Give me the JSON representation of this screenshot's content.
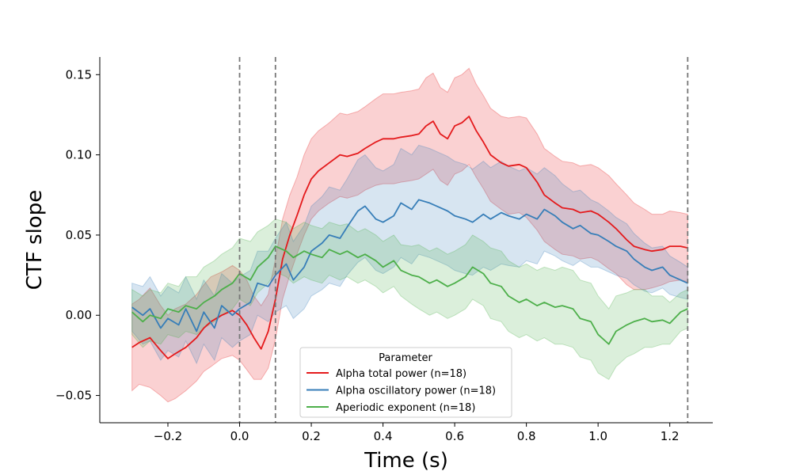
{
  "chart_data": {
    "type": "line",
    "xlabel": "Time (s)",
    "ylabel": "CTF slope",
    "xlim": [
      -0.39,
      1.32
    ],
    "ylim": [
      -0.067,
      0.161
    ],
    "xticks": [
      -0.2,
      0.0,
      0.2,
      0.4,
      0.6,
      0.8,
      1.0,
      1.2
    ],
    "xtick_labels": [
      "−0.2",
      "0.0",
      "0.2",
      "0.4",
      "0.6",
      "0.8",
      "1.0",
      "1.2"
    ],
    "yticks": [
      -0.05,
      0.0,
      0.05,
      0.1,
      0.15
    ],
    "ytick_labels": [
      "−0.05",
      "0.00",
      "0.05",
      "0.10",
      "0.15"
    ],
    "vlines": [
      0.0,
      0.1,
      1.25
    ],
    "legend": {
      "title": "Parameter",
      "location": "lower center"
    },
    "series": [
      {
        "name": "Alpha total power (n=18)",
        "color": "#e41a1c",
        "x": [
          -0.3,
          -0.28,
          -0.25,
          -0.22,
          -0.2,
          -0.18,
          -0.15,
          -0.12,
          -0.1,
          -0.08,
          -0.05,
          -0.02,
          0.0,
          0.02,
          0.04,
          0.06,
          0.08,
          0.1,
          0.12,
          0.14,
          0.16,
          0.18,
          0.2,
          0.22,
          0.25,
          0.28,
          0.3,
          0.33,
          0.35,
          0.38,
          0.4,
          0.43,
          0.45,
          0.48,
          0.5,
          0.52,
          0.54,
          0.56,
          0.58,
          0.6,
          0.62,
          0.64,
          0.66,
          0.68,
          0.7,
          0.73,
          0.75,
          0.78,
          0.8,
          0.83,
          0.85,
          0.88,
          0.9,
          0.93,
          0.95,
          0.98,
          1.0,
          1.03,
          1.05,
          1.08,
          1.1,
          1.13,
          1.15,
          1.18,
          1.2,
          1.23,
          1.25
        ],
        "y": [
          -0.02,
          -0.017,
          -0.014,
          -0.022,
          -0.027,
          -0.024,
          -0.02,
          -0.014,
          -0.008,
          -0.004,
          0.0,
          0.003,
          0.0,
          -0.006,
          -0.014,
          -0.021,
          -0.01,
          0.01,
          0.035,
          0.05,
          0.062,
          0.075,
          0.085,
          0.09,
          0.095,
          0.1,
          0.099,
          0.101,
          0.104,
          0.108,
          0.11,
          0.11,
          0.111,
          0.112,
          0.113,
          0.118,
          0.121,
          0.113,
          0.11,
          0.118,
          0.12,
          0.124,
          0.115,
          0.108,
          0.1,
          0.095,
          0.093,
          0.094,
          0.092,
          0.083,
          0.075,
          0.07,
          0.067,
          0.066,
          0.064,
          0.065,
          0.063,
          0.058,
          0.054,
          0.047,
          0.043,
          0.041,
          0.04,
          0.041,
          0.043,
          0.043,
          0.042
        ],
        "lower": [
          -0.047,
          -0.043,
          -0.045,
          -0.05,
          -0.054,
          -0.052,
          -0.047,
          -0.041,
          -0.035,
          -0.032,
          -0.027,
          -0.025,
          -0.028,
          -0.034,
          -0.04,
          -0.04,
          -0.033,
          -0.015,
          0.01,
          0.025,
          0.038,
          0.05,
          0.06,
          0.065,
          0.07,
          0.074,
          0.073,
          0.075,
          0.078,
          0.081,
          0.082,
          0.082,
          0.083,
          0.084,
          0.085,
          0.088,
          0.091,
          0.084,
          0.081,
          0.088,
          0.09,
          0.094,
          0.086,
          0.079,
          0.071,
          0.066,
          0.063,
          0.064,
          0.061,
          0.053,
          0.046,
          0.041,
          0.038,
          0.037,
          0.035,
          0.036,
          0.034,
          0.029,
          0.026,
          0.019,
          0.016,
          0.016,
          0.017,
          0.019,
          0.021,
          0.022,
          0.021
        ],
        "upper": [
          0.007,
          0.01,
          0.017,
          0.006,
          0.0,
          0.004,
          0.007,
          0.013,
          0.019,
          0.024,
          0.027,
          0.031,
          0.028,
          0.022,
          0.012,
          0.006,
          0.013,
          0.035,
          0.06,
          0.075,
          0.086,
          0.1,
          0.11,
          0.115,
          0.12,
          0.126,
          0.125,
          0.127,
          0.13,
          0.135,
          0.138,
          0.138,
          0.139,
          0.14,
          0.141,
          0.148,
          0.151,
          0.142,
          0.139,
          0.148,
          0.15,
          0.154,
          0.144,
          0.137,
          0.129,
          0.124,
          0.123,
          0.124,
          0.123,
          0.113,
          0.104,
          0.099,
          0.096,
          0.095,
          0.093,
          0.094,
          0.092,
          0.087,
          0.082,
          0.075,
          0.07,
          0.066,
          0.063,
          0.063,
          0.065,
          0.064,
          0.063
        ]
      },
      {
        "name": "Alpha oscillatory power (n=18)",
        "color": "#377eb8",
        "x": [
          -0.3,
          -0.27,
          -0.25,
          -0.22,
          -0.2,
          -0.17,
          -0.15,
          -0.12,
          -0.1,
          -0.07,
          -0.05,
          -0.02,
          0.0,
          0.03,
          0.05,
          0.08,
          0.1,
          0.13,
          0.15,
          0.18,
          0.2,
          0.23,
          0.25,
          0.28,
          0.3,
          0.33,
          0.35,
          0.38,
          0.4,
          0.43,
          0.45,
          0.48,
          0.5,
          0.53,
          0.55,
          0.58,
          0.6,
          0.63,
          0.65,
          0.68,
          0.7,
          0.73,
          0.75,
          0.78,
          0.8,
          0.83,
          0.85,
          0.88,
          0.9,
          0.93,
          0.95,
          0.98,
          1.0,
          1.03,
          1.05,
          1.08,
          1.1,
          1.13,
          1.15,
          1.18,
          1.2,
          1.23,
          1.25
        ],
        "y": [
          0.005,
          0.0,
          0.004,
          -0.008,
          -0.002,
          -0.006,
          0.004,
          -0.01,
          0.002,
          -0.008,
          0.006,
          0.0,
          0.004,
          0.008,
          0.02,
          0.018,
          0.025,
          0.032,
          0.022,
          0.03,
          0.04,
          0.045,
          0.05,
          0.048,
          0.055,
          0.065,
          0.068,
          0.06,
          0.058,
          0.062,
          0.07,
          0.066,
          0.072,
          0.07,
          0.068,
          0.065,
          0.062,
          0.06,
          0.058,
          0.063,
          0.06,
          0.064,
          0.062,
          0.06,
          0.063,
          0.06,
          0.066,
          0.062,
          0.058,
          0.054,
          0.056,
          0.051,
          0.05,
          0.046,
          0.043,
          0.04,
          0.035,
          0.03,
          0.028,
          0.03,
          0.025,
          0.022,
          0.02
        ],
        "lower": [
          -0.01,
          -0.018,
          -0.016,
          -0.028,
          -0.022,
          -0.026,
          -0.016,
          -0.03,
          -0.018,
          -0.028,
          -0.014,
          -0.02,
          -0.016,
          -0.012,
          0.0,
          -0.004,
          0.002,
          0.006,
          -0.002,
          0.004,
          0.012,
          0.016,
          0.02,
          0.018,
          0.025,
          0.033,
          0.036,
          0.028,
          0.026,
          0.03,
          0.036,
          0.032,
          0.038,
          0.036,
          0.034,
          0.031,
          0.028,
          0.026,
          0.025,
          0.03,
          0.028,
          0.032,
          0.031,
          0.03,
          0.034,
          0.032,
          0.04,
          0.037,
          0.034,
          0.031,
          0.034,
          0.03,
          0.03,
          0.027,
          0.025,
          0.023,
          0.019,
          0.015,
          0.014,
          0.017,
          0.013,
          0.011,
          0.01
        ],
        "upper": [
          0.02,
          0.018,
          0.024,
          0.012,
          0.018,
          0.014,
          0.024,
          0.01,
          0.022,
          0.012,
          0.026,
          0.02,
          0.024,
          0.028,
          0.04,
          0.04,
          0.048,
          0.058,
          0.046,
          0.056,
          0.068,
          0.074,
          0.08,
          0.078,
          0.085,
          0.097,
          0.1,
          0.092,
          0.09,
          0.094,
          0.104,
          0.1,
          0.106,
          0.104,
          0.102,
          0.099,
          0.096,
          0.094,
          0.091,
          0.096,
          0.092,
          0.096,
          0.093,
          0.09,
          0.092,
          0.088,
          0.092,
          0.087,
          0.082,
          0.077,
          0.078,
          0.072,
          0.07,
          0.065,
          0.061,
          0.057,
          0.051,
          0.045,
          0.042,
          0.043,
          0.037,
          0.033,
          0.03
        ]
      },
      {
        "name": "Aperiodic exponent (n=18)",
        "color": "#4daf4a",
        "x": [
          -0.3,
          -0.27,
          -0.25,
          -0.22,
          -0.2,
          -0.17,
          -0.15,
          -0.12,
          -0.1,
          -0.07,
          -0.05,
          -0.02,
          0.0,
          0.03,
          0.05,
          0.08,
          0.1,
          0.13,
          0.15,
          0.18,
          0.2,
          0.23,
          0.25,
          0.28,
          0.3,
          0.33,
          0.35,
          0.38,
          0.4,
          0.43,
          0.45,
          0.48,
          0.5,
          0.53,
          0.55,
          0.58,
          0.6,
          0.63,
          0.65,
          0.68,
          0.7,
          0.73,
          0.75,
          0.78,
          0.8,
          0.83,
          0.85,
          0.88,
          0.9,
          0.93,
          0.95,
          0.98,
          1.0,
          1.03,
          1.05,
          1.08,
          1.1,
          1.13,
          1.15,
          1.18,
          1.2,
          1.23,
          1.25
        ],
        "y": [
          0.002,
          -0.004,
          0.0,
          -0.002,
          0.004,
          0.002,
          0.006,
          0.004,
          0.008,
          0.012,
          0.016,
          0.02,
          0.026,
          0.022,
          0.03,
          0.036,
          0.043,
          0.04,
          0.036,
          0.04,
          0.038,
          0.036,
          0.041,
          0.038,
          0.04,
          0.036,
          0.038,
          0.034,
          0.03,
          0.034,
          0.028,
          0.025,
          0.024,
          0.02,
          0.022,
          0.018,
          0.02,
          0.024,
          0.03,
          0.026,
          0.02,
          0.018,
          0.012,
          0.008,
          0.01,
          0.006,
          0.008,
          0.005,
          0.006,
          0.004,
          -0.002,
          -0.004,
          -0.012,
          -0.018,
          -0.01,
          -0.006,
          -0.004,
          -0.002,
          -0.004,
          -0.003,
          -0.005,
          0.002,
          0.004
        ],
        "lower": [
          -0.012,
          -0.02,
          -0.016,
          -0.018,
          -0.012,
          -0.014,
          -0.01,
          -0.012,
          -0.008,
          -0.004,
          0.0,
          0.004,
          0.01,
          0.006,
          0.014,
          0.02,
          0.027,
          0.024,
          0.02,
          0.024,
          0.022,
          0.02,
          0.025,
          0.022,
          0.024,
          0.02,
          0.022,
          0.018,
          0.014,
          0.018,
          0.012,
          0.007,
          0.004,
          0.0,
          0.002,
          -0.002,
          0.0,
          0.004,
          0.01,
          0.006,
          -0.002,
          -0.004,
          -0.01,
          -0.014,
          -0.012,
          -0.016,
          -0.014,
          -0.018,
          -0.018,
          -0.02,
          -0.026,
          -0.028,
          -0.036,
          -0.04,
          -0.032,
          -0.026,
          -0.024,
          -0.02,
          -0.02,
          -0.018,
          -0.018,
          -0.01,
          -0.008
        ],
        "upper": [
          0.016,
          0.012,
          0.016,
          0.014,
          0.02,
          0.018,
          0.024,
          0.024,
          0.03,
          0.034,
          0.038,
          0.042,
          0.048,
          0.046,
          0.052,
          0.056,
          0.06,
          0.058,
          0.054,
          0.058,
          0.056,
          0.054,
          0.058,
          0.056,
          0.057,
          0.052,
          0.054,
          0.05,
          0.046,
          0.05,
          0.044,
          0.043,
          0.044,
          0.04,
          0.042,
          0.038,
          0.04,
          0.044,
          0.05,
          0.046,
          0.042,
          0.04,
          0.034,
          0.03,
          0.032,
          0.028,
          0.03,
          0.028,
          0.03,
          0.028,
          0.022,
          0.02,
          0.012,
          0.004,
          0.012,
          0.014,
          0.016,
          0.016,
          0.012,
          0.012,
          0.008,
          0.014,
          0.016
        ]
      }
    ]
  }
}
